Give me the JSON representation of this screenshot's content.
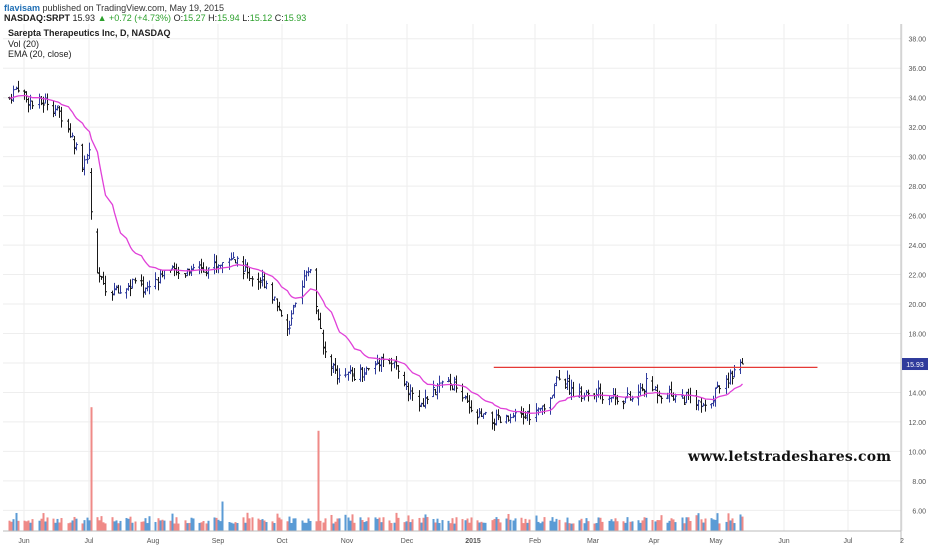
{
  "header": {
    "author": "flavisam",
    "published": "published on TradingView.com, May 19, 2015",
    "symbol": "NASDAQ:SRPT",
    "last": "15.93",
    "change_arrow": "▲",
    "change": "+0.72 (+4.73%)",
    "o_label": "O:",
    "o_value": "15.27",
    "h_label": "H:",
    "h_value": "15.94",
    "l_label": "L:",
    "l_value": "15.12",
    "c_label": "C:",
    "c_value": "15.93"
  },
  "legend": {
    "title": "Sarepta Therapeutics Inc, D, NASDAQ",
    "vol": "Vol (20)",
    "ema": "EMA (20, close)"
  },
  "watermark": "www.letstradeshares.com",
  "colors": {
    "bar_up": "#2f3b9c",
    "bar_down": "#1a1a1a",
    "ema": "#e040d8",
    "resistance": "#e53935",
    "vol_up": "#5b9bd5",
    "vol_down": "#ef8a87",
    "price_badge": "#2f3b9c",
    "grid": "#eeeeee"
  },
  "chart_data": {
    "type": "ohlc",
    "y_axis": {
      "ticks": [
        "6.00",
        "8.00",
        "10.00",
        "12.00",
        "14.00",
        "16.00",
        "18.00",
        "20.00",
        "22.00",
        "24.00",
        "26.00",
        "28.00",
        "30.00",
        "32.00",
        "34.00",
        "36.00",
        "38.00"
      ],
      "range": [
        4.6,
        39.0
      ],
      "position": "right",
      "last_price_label": "15.93"
    },
    "x_axis": {
      "ticks": [
        "Jun",
        "Jul",
        "Aug",
        "Sep",
        "Oct",
        "Nov",
        "Dec",
        "2015",
        "Feb",
        "Mar",
        "Apr",
        "May",
        "Jun",
        "Jul",
        "2"
      ]
    },
    "price_anchors": [
      [
        "2014-06-02",
        34.0
      ],
      [
        "2014-06-06",
        34.8
      ],
      [
        "2014-06-13",
        33.5
      ],
      [
        "2014-06-20",
        33.8
      ],
      [
        "2014-06-27",
        32.8
      ],
      [
        "2014-07-03",
        31.0
      ],
      [
        "2014-07-07",
        29.5
      ],
      [
        "2014-07-10",
        30.5
      ],
      [
        "2014-07-11",
        26.0
      ],
      [
        "2014-07-14",
        22.0
      ],
      [
        "2014-07-18",
        21.0
      ],
      [
        "2014-07-25",
        20.8
      ],
      [
        "2014-08-01",
        21.5
      ],
      [
        "2014-08-06",
        21.0
      ],
      [
        "2014-08-15",
        22.3
      ],
      [
        "2014-08-22",
        22.0
      ],
      [
        "2014-08-29",
        22.6
      ],
      [
        "2014-09-05",
        22.5
      ],
      [
        "2014-09-12",
        22.8
      ],
      [
        "2014-09-19",
        23.0
      ],
      [
        "2014-09-26",
        21.8
      ],
      [
        "2014-10-03",
        21.5
      ],
      [
        "2014-10-08",
        20.0
      ],
      [
        "2014-10-14",
        18.3
      ],
      [
        "2014-10-20",
        21.5
      ],
      [
        "2014-10-24",
        22.5
      ],
      [
        "2014-10-30",
        17.0
      ],
      [
        "2014-11-07",
        15.0
      ],
      [
        "2014-11-14",
        15.3
      ],
      [
        "2014-11-21",
        15.5
      ],
      [
        "2014-11-28",
        16.5
      ],
      [
        "2014-12-05",
        15.5
      ],
      [
        "2014-12-12",
        13.5
      ],
      [
        "2014-12-19",
        13.5
      ],
      [
        "2014-12-26",
        14.5
      ],
      [
        "2015-01-02",
        14.5
      ],
      [
        "2015-01-09",
        12.5
      ],
      [
        "2015-01-16",
        12.2
      ],
      [
        "2015-01-23",
        12.0
      ],
      [
        "2015-01-30",
        12.2
      ],
      [
        "2015-02-06",
        12.5
      ],
      [
        "2015-02-13",
        12.8
      ],
      [
        "2015-02-20",
        15.3
      ],
      [
        "2015-02-27",
        14.0
      ],
      [
        "2015-03-06",
        13.8
      ],
      [
        "2015-03-13",
        13.9
      ],
      [
        "2015-03-20",
        13.7
      ],
      [
        "2015-03-27",
        13.5
      ],
      [
        "2015-04-03",
        14.5
      ],
      [
        "2015-04-10",
        14.0
      ],
      [
        "2015-04-17",
        13.8
      ],
      [
        "2015-04-24",
        13.5
      ],
      [
        "2015-05-01",
        12.8
      ],
      [
        "2015-05-08",
        14.5
      ],
      [
        "2015-05-15",
        15.2
      ],
      [
        "2015-05-19",
        15.93
      ]
    ],
    "big_volume_days": [
      [
        "2014-07-11",
        13.0
      ],
      [
        "2014-09-12",
        6.6
      ],
      [
        "2014-10-28",
        11.4
      ],
      [
        "2014-11-10",
        5.7
      ],
      [
        "2015-05-12",
        5.8
      ]
    ],
    "resistance_level": 15.7,
    "resistance_from": "2015-01-20",
    "resistance_to": "2015-06-24",
    "series": [
      {
        "name": "EMA (20, close)"
      },
      {
        "name": "Vol (20)"
      }
    ]
  }
}
